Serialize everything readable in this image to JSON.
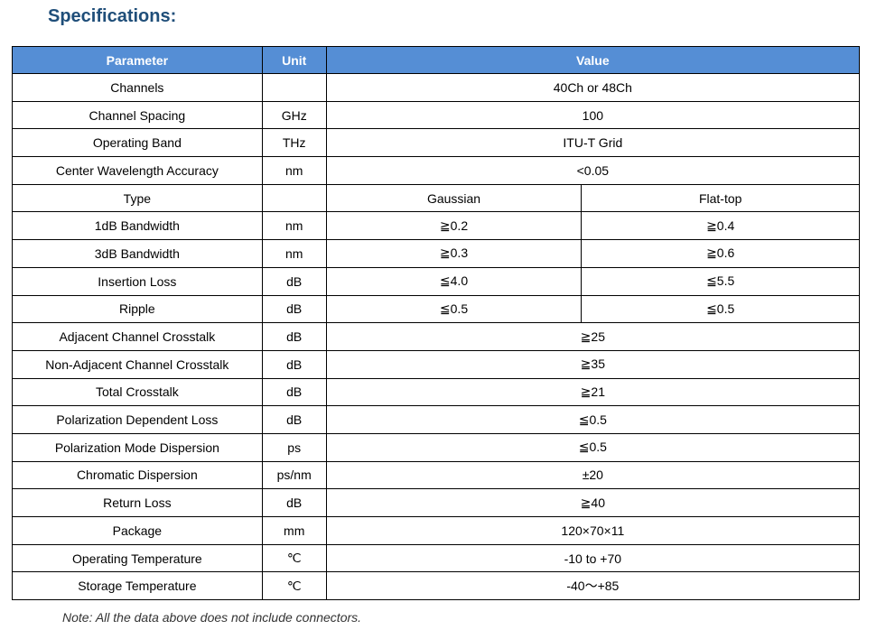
{
  "title": "Specifications:",
  "headers": [
    "Parameter",
    "Unit",
    "Value"
  ],
  "rows": [
    {
      "p": "Channels",
      "u": "",
      "v": "40Ch or 48Ch"
    },
    {
      "p": "Channel Spacing",
      "u": "GHz",
      "v": "100"
    },
    {
      "p": "Operating Band",
      "u": "THz",
      "v": "ITU-T Grid"
    },
    {
      "p": "Center Wavelength Accuracy",
      "u": "nm",
      "v": "<0.05"
    },
    {
      "p": "Type",
      "u": "",
      "v": "Gaussian",
      "v2": "Flat-top"
    },
    {
      "p": "1dB Bandwidth",
      "u": "nm",
      "v": "≧0.2",
      "v2": "≧0.4"
    },
    {
      "p": "3dB Bandwidth",
      "u": "nm",
      "v": "≧0.3",
      "v2": "≧0.6"
    },
    {
      "p": "Insertion Loss",
      "u": "dB",
      "v": "≦4.0",
      "v2": "≦5.5"
    },
    {
      "p": "Ripple",
      "u": "dB",
      "v": "≦0.5",
      "v2": "≦0.5"
    },
    {
      "p": "Adjacent Channel Crosstalk",
      "u": "dB",
      "v": "≧25"
    },
    {
      "p": "Non-Adjacent Channel Crosstalk",
      "u": "dB",
      "v": "≧35"
    },
    {
      "p": "Total Crosstalk",
      "u": "dB",
      "v": "≧21"
    },
    {
      "p": "Polarization Dependent Loss",
      "u": "dB",
      "v": "≦0.5"
    },
    {
      "p": "Polarization Mode Dispersion",
      "u": "ps",
      "v": "≦0.5"
    },
    {
      "p": "Chromatic Dispersion",
      "u": "ps/nm",
      "v": "±20"
    },
    {
      "p": "Return Loss",
      "u": "dB",
      "v": "≧40"
    },
    {
      "p": "Package",
      "u": "mm",
      "v": "120×70×11"
    },
    {
      "p": "Operating Temperature",
      "u": "℃",
      "v": "-10 to +70"
    },
    {
      "p": "Storage Temperature",
      "u": "℃",
      "v": "-40～+85"
    }
  ],
  "note": "Note: All the data above does not include connectors.",
  "colors": {
    "header_bg": "#558ed5",
    "title": "#1f4e79"
  }
}
